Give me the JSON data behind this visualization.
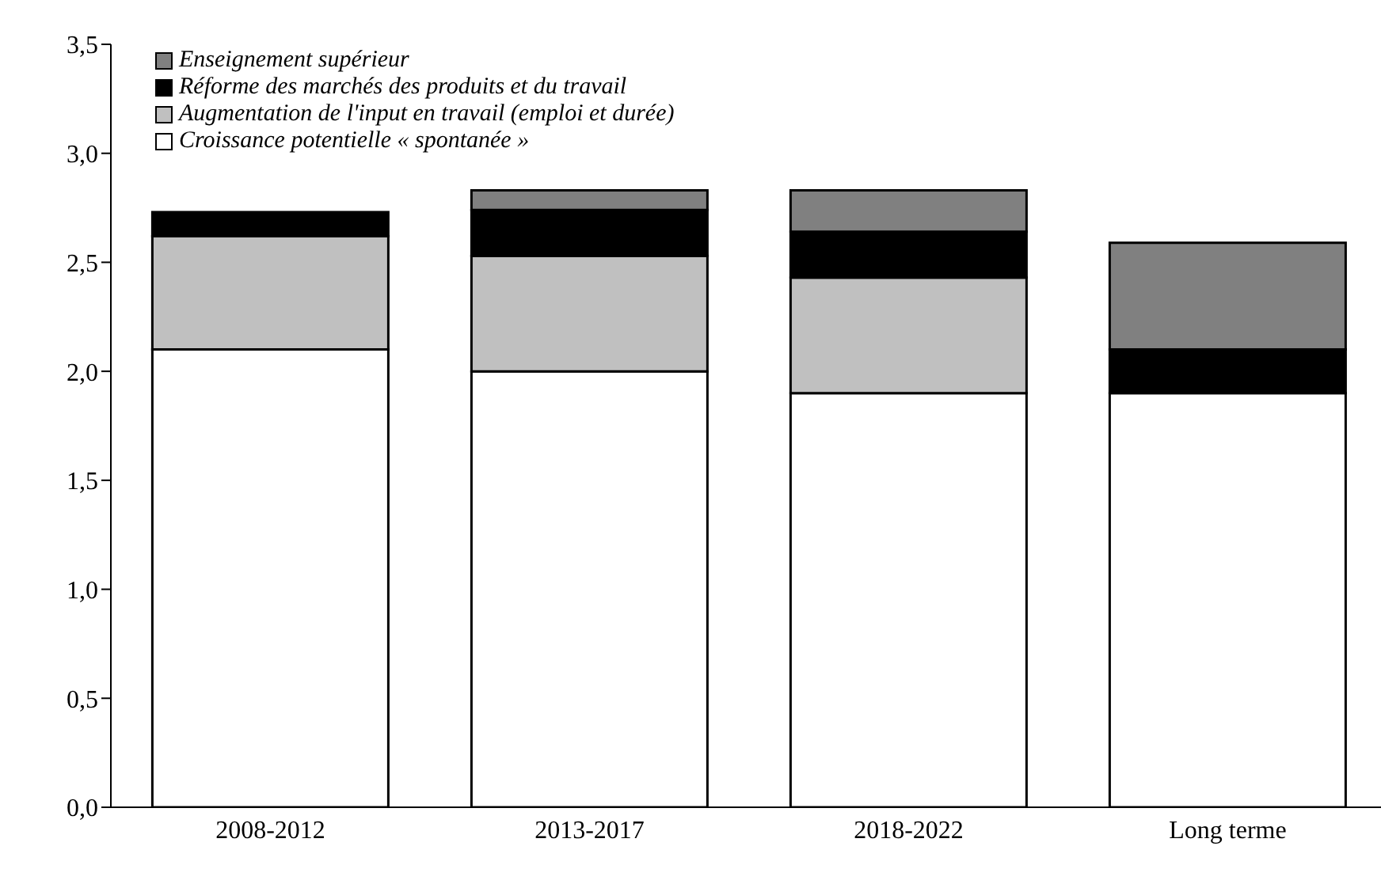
{
  "chart_data": {
    "type": "bar",
    "stacked": true,
    "categories": [
      "2008-2012",
      "2013-2017",
      "2018-2022",
      "Long terme"
    ],
    "series": [
      {
        "name": "Croissance potentielle « spontanée »",
        "color": "#ffffff",
        "values": [
          2.1,
          2.0,
          1.9,
          1.9
        ]
      },
      {
        "name": "Augmentation de l'input en travail (emploi et durée)",
        "color": "#c0c0c0",
        "values": [
          0.52,
          0.53,
          0.53,
          0
        ]
      },
      {
        "name": "Réforme des marchés des produits et du travail",
        "color": "#000000",
        "values": [
          0.11,
          0.21,
          0.21,
          0.2
        ]
      },
      {
        "name": "Enseignement supérieur",
        "color": "#808080",
        "values": [
          0,
          0.09,
          0.19,
          0.49
        ]
      }
    ],
    "ylim": [
      0,
      3.5
    ],
    "yticks": [
      {
        "value": 0,
        "label": "0,0"
      },
      {
        "value": 0.5,
        "label": "0,5"
      },
      {
        "value": 1,
        "label": "1,0"
      },
      {
        "value": 1.5,
        "label": "1,5"
      },
      {
        "value": 2,
        "label": "2,0"
      },
      {
        "value": 2.5,
        "label": "2,5"
      },
      {
        "value": 3,
        "label": "3,0"
      },
      {
        "value": 3.5,
        "label": "3,5"
      }
    ],
    "grid": false,
    "legend": "top left"
  }
}
